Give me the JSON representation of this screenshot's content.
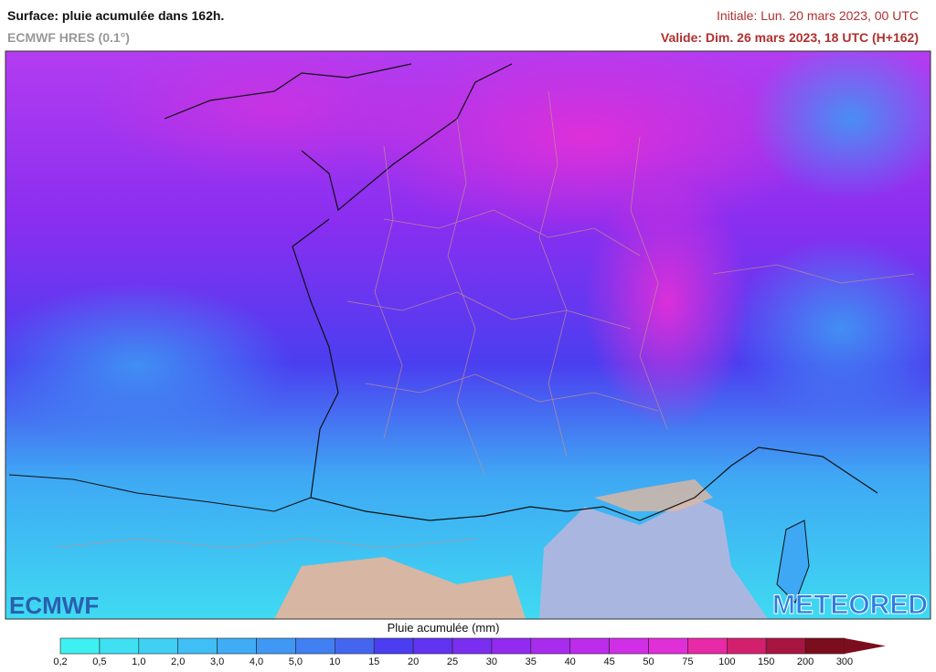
{
  "header": {
    "title": "Surface: pluie acumulée dans 162h.",
    "model": "ECMWF HRES (0.1°)",
    "initial": "Initiale: Lun. 20 mars 2023, 00 UTC",
    "valid": "Valide: Dim. 26 mars 2023, 18 UTC (H+162)"
  },
  "logos": {
    "left": "ECMWF",
    "right": "METEORED"
  },
  "legend": {
    "title": "Pluie acumulée (mm)",
    "labels": [
      "0,2",
      "0,5",
      "1,0",
      "2,0",
      "3,0",
      "4,0",
      "5,0",
      "10",
      "15",
      "20",
      "25",
      "30",
      "35",
      "40",
      "45",
      "50",
      "75",
      "100",
      "150",
      "200",
      "300"
    ],
    "colors": [
      "#3ff0f0",
      "#3ee0f2",
      "#3fd0f4",
      "#3fbff5",
      "#3fadf5",
      "#3f98f4",
      "#4080f2",
      "#4466ef",
      "#4a3ef0",
      "#6233f0",
      "#7a2ef0",
      "#922bef",
      "#a82ced",
      "#bd2ceb",
      "#d12ee8",
      "#e12fd8",
      "#e82aa6",
      "#d21f6e",
      "#a81540",
      "#7c0d1c"
    ]
  }
}
